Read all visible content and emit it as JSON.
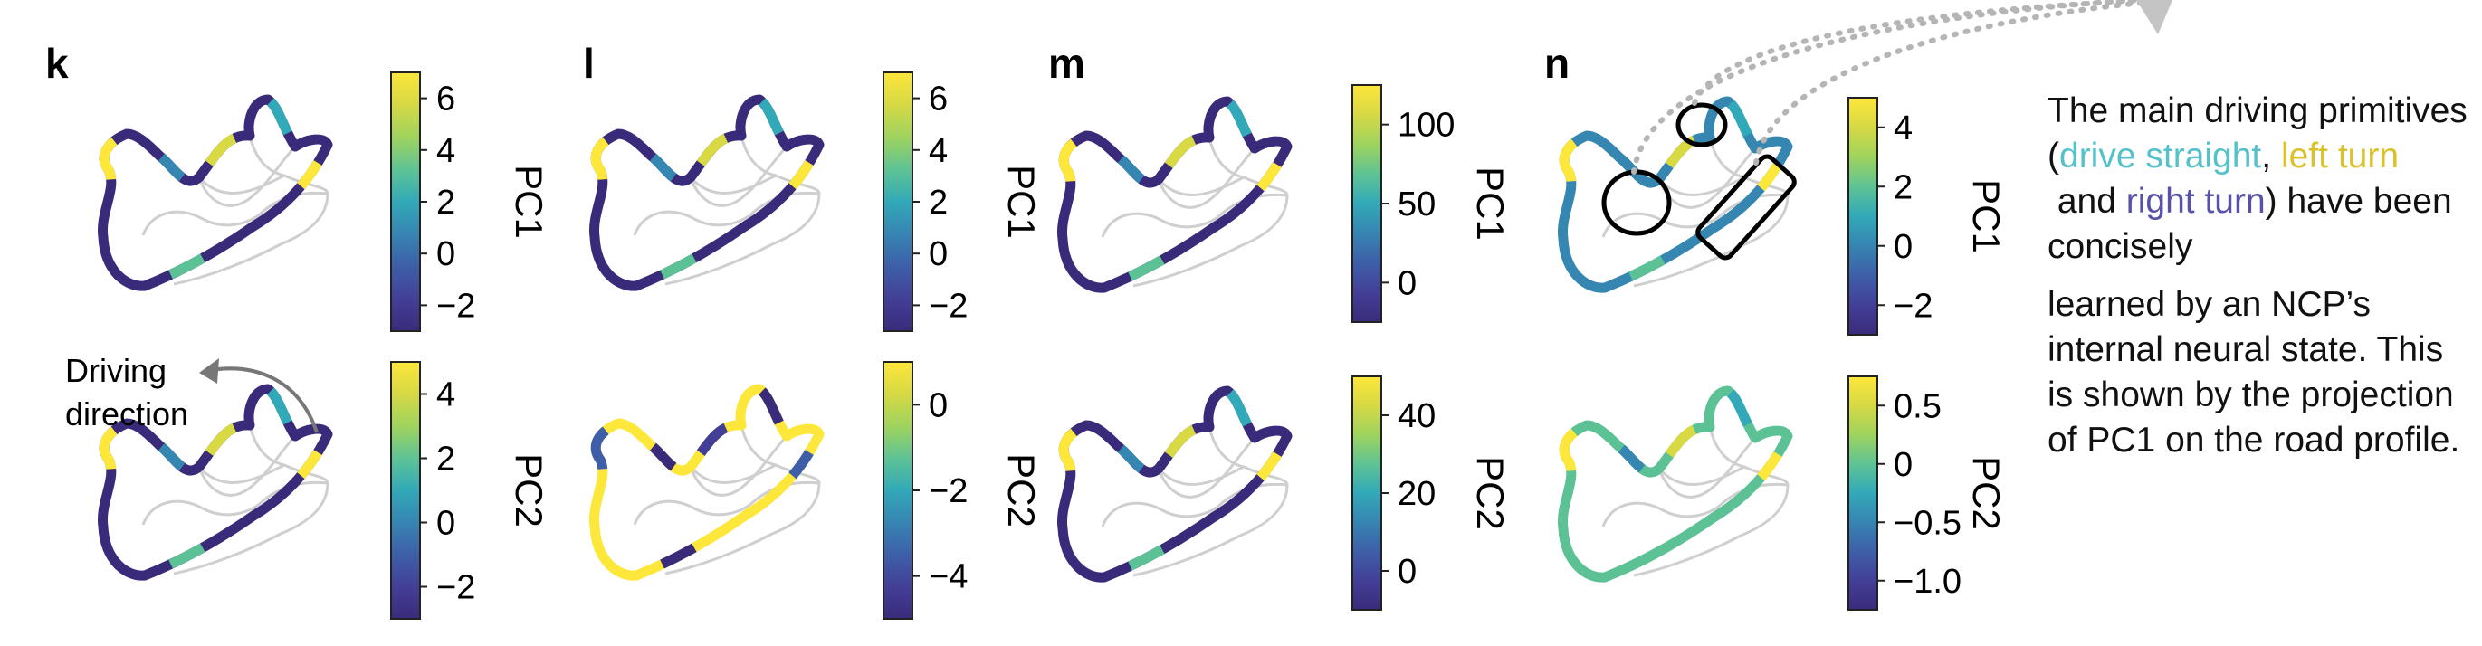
{
  "colors": {
    "viridis": [
      "#3a2b7a",
      "#433e96",
      "#3e5fa8",
      "#3686b2",
      "#32a9b8",
      "#5cc296",
      "#9fd35e",
      "#d8d943",
      "#fde73b"
    ],
    "road_bg": "#cfcfcf",
    "marker": "#000000",
    "dotted": "#b5b5b5",
    "arrow": "#777777",
    "drive_straight": "#55c1c8",
    "left_turn": "#e8d33a",
    "right_turn": "#5752a8"
  },
  "panels": [
    {
      "id": "k",
      "letter": "k",
      "top": {
        "label": "PC1",
        "ticks": [
          "6",
          "4",
          "2",
          "0",
          "−2"
        ],
        "dominant": 0
      },
      "bottom": {
        "label": "PC2",
        "ticks": [
          "4",
          "2",
          "0",
          "−2"
        ],
        "dominant": 0
      }
    },
    {
      "id": "l",
      "letter": "l",
      "top": {
        "label": "PC1",
        "ticks": [
          "6",
          "4",
          "2",
          "0",
          "−2"
        ],
        "dominant": 0
      },
      "bottom": {
        "label": "PC2",
        "ticks": [
          "0",
          "−2",
          "−4"
        ],
        "dominant": 8
      }
    },
    {
      "id": "m",
      "letter": "m",
      "top": {
        "label": "PC1",
        "ticks": [
          "100",
          "50",
          "0"
        ],
        "dominant": 0
      },
      "bottom": {
        "label": "PC2",
        "ticks": [
          "40",
          "20",
          "0"
        ],
        "dominant": 0
      }
    },
    {
      "id": "n",
      "letter": "n",
      "top": {
        "label": "PC1",
        "ticks": [
          "4",
          "2",
          "0",
          "−2"
        ],
        "dominant": 3
      },
      "bottom": {
        "label": "PC2",
        "ticks": [
          "0.5",
          "0",
          "−0.5",
          "−1.0"
        ],
        "dominant": 5
      }
    }
  ],
  "driving_direction": {
    "line1": "Driving",
    "line2": "direction"
  },
  "caption": {
    "p1_a": "The main driving primitives (",
    "drive_straight": "drive straight",
    "comma": ",",
    "left_turn": "left turn",
    "and": " and ",
    "right_turn": "right turn",
    "p1_b": ") have been concisely",
    "p2": "learned by an NCP’s internal neural state. This is shown by the projection of PC1 on the road profile."
  }
}
